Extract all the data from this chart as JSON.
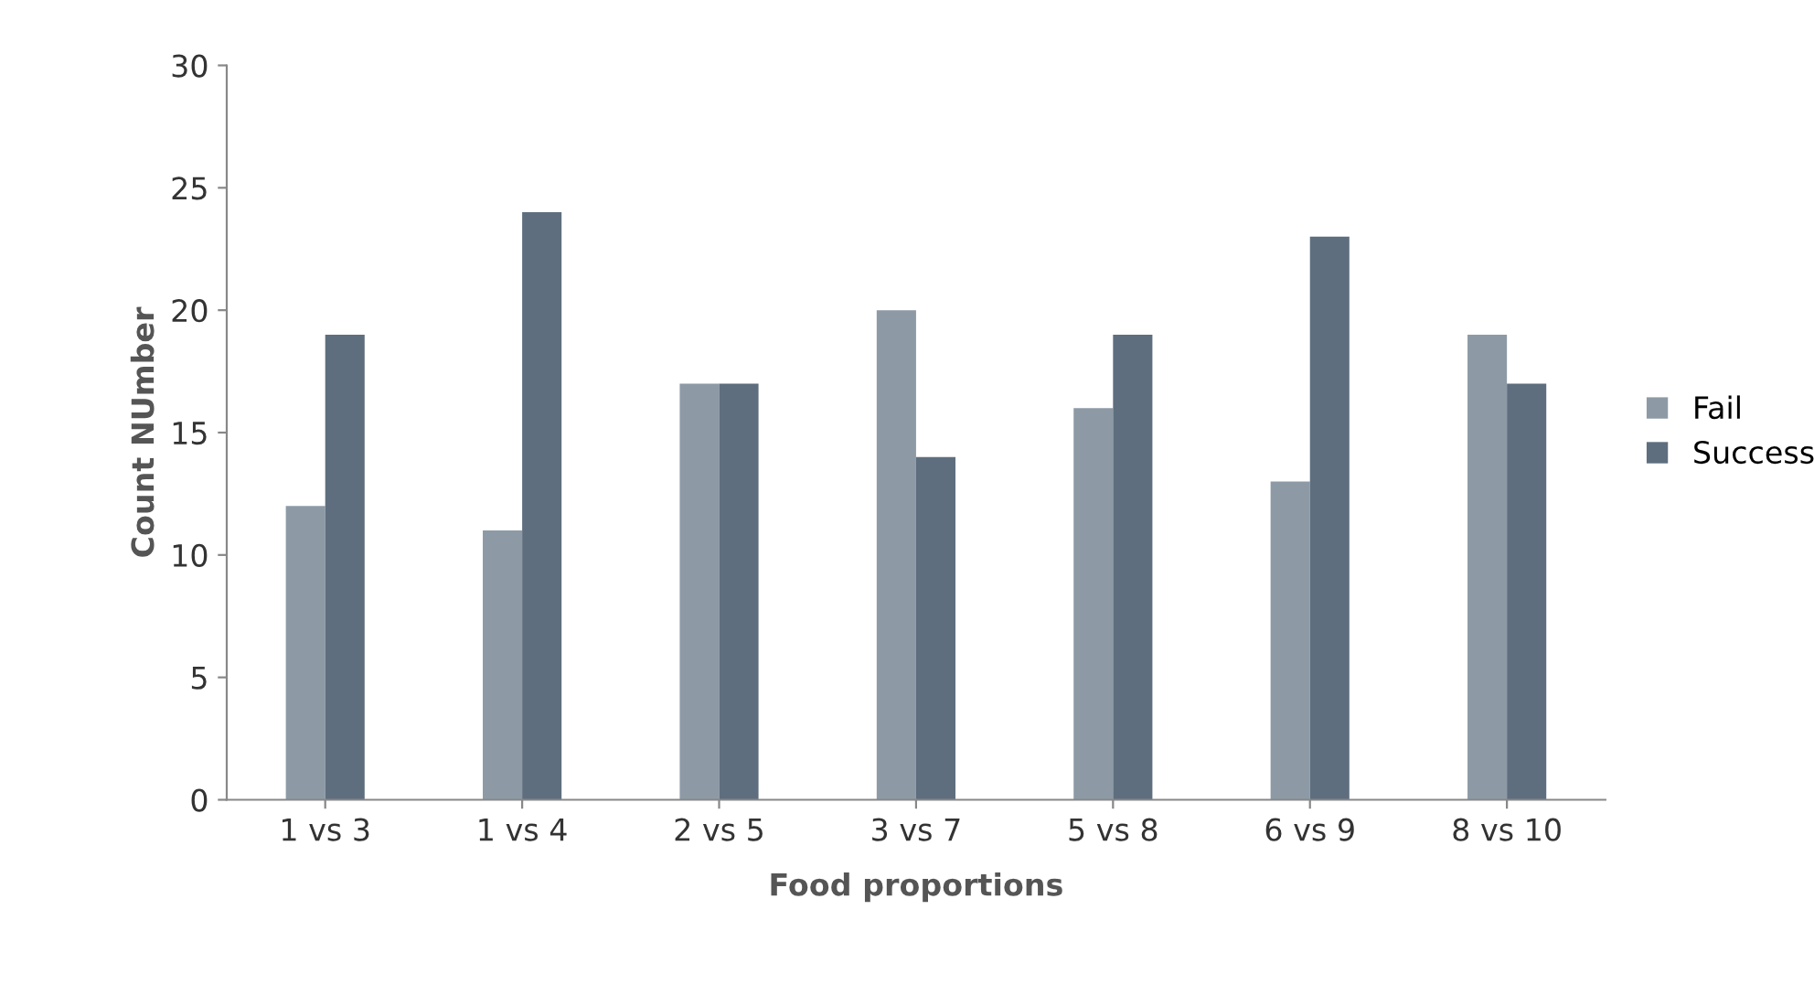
{
  "chart_data": {
    "type": "bar",
    "xlabel": "Food proportions",
    "ylabel": "Count NUmber",
    "categories": [
      "1 vs 3",
      "1 vs 4",
      "2 vs 5",
      "3 vs 7",
      "5 vs 8",
      "6 vs 9",
      "8 vs 10"
    ],
    "series": [
      {
        "name": "Fail",
        "color": "#8d9aa6",
        "values": [
          12,
          11,
          17,
          20,
          16,
          13,
          19
        ]
      },
      {
        "name": "Success",
        "color": "#5e6e7e",
        "values": [
          19,
          24,
          17,
          14,
          19,
          23,
          17
        ]
      }
    ],
    "ylim": [
      0,
      30
    ],
    "yticks": [
      0,
      5,
      10,
      15,
      20,
      25,
      30
    ],
    "grid": false,
    "legend": "right"
  }
}
